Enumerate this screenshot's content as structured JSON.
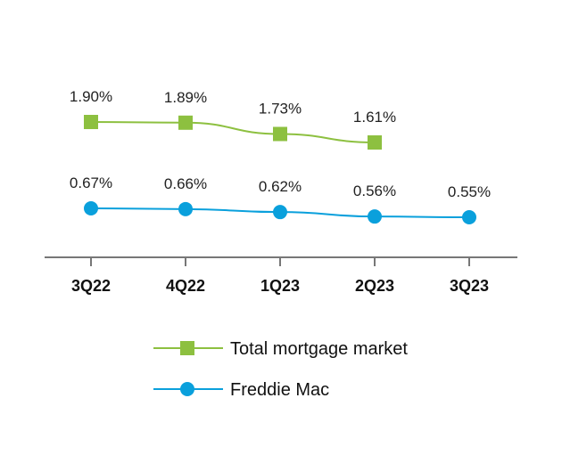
{
  "chart_data": {
    "type": "line",
    "categories": [
      "3Q22",
      "4Q22",
      "1Q23",
      "2Q23",
      "3Q23"
    ],
    "series": [
      {
        "name": "Total mortgage market",
        "values": [
          1.9,
          1.89,
          1.73,
          1.61,
          null
        ],
        "labels": [
          "1.90%",
          "1.89%",
          "1.73%",
          "1.61%",
          null
        ],
        "color": "#8dc040",
        "marker": "square"
      },
      {
        "name": "Freddie Mac",
        "values": [
          0.67,
          0.66,
          0.62,
          0.56,
          0.55
        ],
        "labels": [
          "0.67%",
          "0.66%",
          "0.62%",
          "0.56%",
          "0.55%"
        ],
        "color": "#0aa0dc",
        "marker": "circle"
      }
    ],
    "axis_color": "#777777",
    "grid": false,
    "legend_position": "bottom"
  }
}
